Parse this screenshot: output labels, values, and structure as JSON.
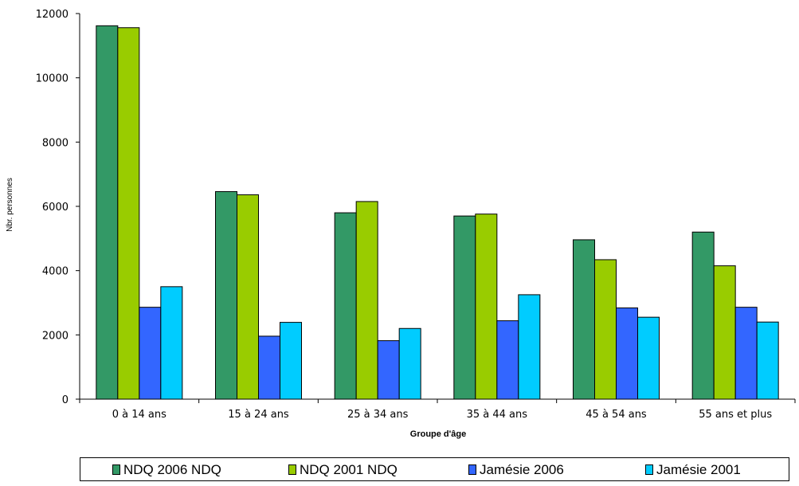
{
  "chart_data": {
    "type": "bar",
    "categories": [
      "0 à 14 ans",
      "15 à 24 ans",
      "25 à 34 ans",
      "35 à 44 ans",
      "45 à 54 ans",
      "55 ans et plus"
    ],
    "series": [
      {
        "name": "NDQ 2006 NDQ",
        "color": "#339966",
        "values": [
          11620,
          6460,
          5800,
          5700,
          4960,
          5200
        ]
      },
      {
        "name": "NDQ 2001 NDQ",
        "color": "#99cc00",
        "values": [
          11560,
          6360,
          6150,
          5760,
          4340,
          4150
        ]
      },
      {
        "name": "Jamésie 2006",
        "color": "#3366ff",
        "values": [
          2860,
          1960,
          1820,
          2440,
          2840,
          2860
        ]
      },
      {
        "name": "Jamésie 2001",
        "color": "#00ccff",
        "values": [
          3500,
          2390,
          2200,
          3250,
          2550,
          2400
        ]
      }
    ],
    "ylim": [
      0,
      12000
    ],
    "yticks": [
      "0",
      "2000",
      "4000",
      "6000",
      "8000",
      "10000",
      "12000"
    ],
    "xlabel": "Groupe d'âge",
    "ylabel": "Nbr. personnes",
    "grid": false,
    "legend_position": "bottom"
  }
}
